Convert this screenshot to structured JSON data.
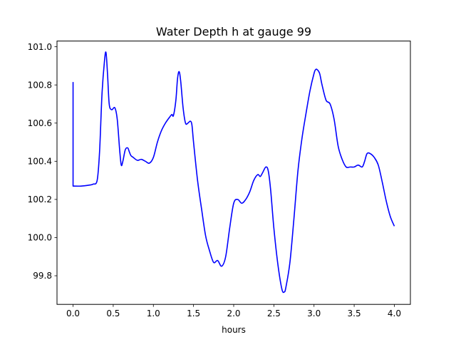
{
  "chart_data": {
    "type": "line",
    "title": "Water Depth h at gauge 99",
    "xlabel": "hours",
    "ylabel": "",
    "xlim": [
      -0.2,
      4.2
    ],
    "ylim": [
      99.65,
      101.03
    ],
    "x_ticks": [
      0.0,
      0.5,
      1.0,
      1.5,
      2.0,
      2.5,
      3.0,
      3.5,
      4.0
    ],
    "x_tick_labels": [
      "0.0",
      "0.5",
      "1.0",
      "1.5",
      "2.0",
      "2.5",
      "3.0",
      "3.5",
      "4.0"
    ],
    "y_ticks": [
      99.8,
      100.0,
      100.2,
      100.4,
      100.6,
      100.8,
      101.0
    ],
    "y_tick_labels": [
      "99.8",
      "100.0",
      "100.2",
      "100.4",
      "100.6",
      "100.8",
      "101.0"
    ],
    "grid": false,
    "series": [
      {
        "color": "#0000ff",
        "x": [
          0.0,
          0.0,
          0.1,
          0.2,
          0.25,
          0.3,
          0.33,
          0.36,
          0.39,
          0.41,
          0.43,
          0.45,
          0.48,
          0.52,
          0.55,
          0.58,
          0.6,
          0.62,
          0.65,
          0.68,
          0.7,
          0.72,
          0.75,
          0.8,
          0.85,
          0.9,
          0.95,
          1.0,
          1.05,
          1.1,
          1.15,
          1.2,
          1.23,
          1.25,
          1.28,
          1.3,
          1.32,
          1.34,
          1.37,
          1.4,
          1.43,
          1.46,
          1.48,
          1.5,
          1.55,
          1.6,
          1.65,
          1.7,
          1.75,
          1.8,
          1.85,
          1.9,
          1.95,
          2.0,
          2.05,
          2.1,
          2.15,
          2.2,
          2.25,
          2.3,
          2.33,
          2.36,
          2.4,
          2.43,
          2.46,
          2.5,
          2.55,
          2.6,
          2.63,
          2.65,
          2.7,
          2.75,
          2.8,
          2.85,
          2.9,
          2.95,
          3.0,
          3.02,
          3.04,
          3.07,
          3.1,
          3.15,
          3.2,
          3.25,
          3.3,
          3.35,
          3.4,
          3.45,
          3.5,
          3.55,
          3.6,
          3.63,
          3.66,
          3.7,
          3.75,
          3.8,
          3.85,
          3.9,
          3.95,
          4.0
        ],
        "y": [
          100.815,
          100.27,
          100.27,
          100.275,
          100.28,
          100.3,
          100.45,
          100.75,
          100.92,
          100.97,
          100.85,
          100.7,
          100.67,
          100.68,
          100.62,
          100.46,
          100.38,
          100.4,
          100.46,
          100.47,
          100.45,
          100.43,
          100.42,
          100.405,
          100.41,
          100.4,
          100.39,
          100.42,
          100.5,
          100.56,
          100.6,
          100.63,
          100.645,
          100.64,
          100.72,
          100.83,
          100.87,
          100.82,
          100.68,
          100.6,
          100.6,
          100.61,
          100.59,
          100.5,
          100.3,
          100.15,
          100.01,
          99.93,
          99.87,
          99.88,
          99.85,
          99.9,
          100.05,
          100.18,
          100.2,
          100.18,
          100.2,
          100.24,
          100.3,
          100.33,
          100.32,
          100.34,
          100.37,
          100.35,
          100.25,
          100.05,
          99.86,
          99.73,
          99.715,
          99.74,
          99.87,
          100.1,
          100.35,
          100.52,
          100.65,
          100.77,
          100.86,
          100.88,
          100.88,
          100.86,
          100.8,
          100.72,
          100.7,
          100.62,
          100.48,
          100.41,
          100.37,
          100.37,
          100.37,
          100.38,
          100.37,
          100.4,
          100.44,
          100.44,
          100.42,
          100.38,
          100.29,
          100.19,
          100.11,
          100.06
        ]
      }
    ]
  }
}
